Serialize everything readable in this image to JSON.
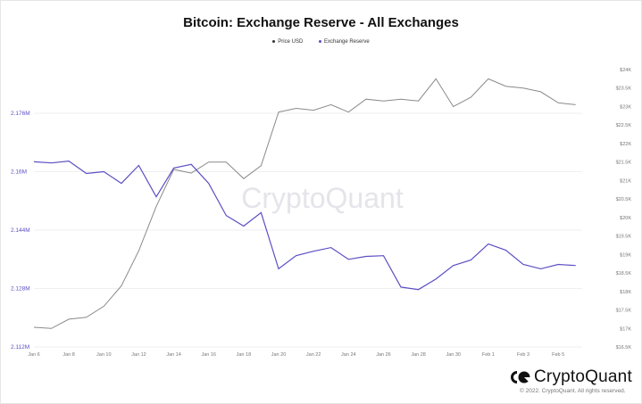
{
  "title": "Bitcoin: Exchange Reserve - All Exchanges",
  "legend": [
    {
      "label": "Price USD",
      "color": "#333333"
    },
    {
      "label": "Exchange Reserve",
      "color": "#5b4fc4"
    }
  ],
  "watermark": "CryptoQuant",
  "footer": {
    "logo_text": "CryptoQuant",
    "copyright": "© 2022. CryptoQuant. All rights reserved."
  },
  "colors": {
    "price": "#8a8a8a",
    "reserve": "#5b4fc4",
    "grid": "#efefef"
  },
  "chart_data": {
    "type": "line",
    "title": "Bitcoin: Exchange Reserve - All Exchanges",
    "xlabel": "",
    "ylabel_left": "Exchange Reserve",
    "ylabel_right": "Price USD",
    "x": [
      "Jan 6",
      "Jan 7",
      "Jan 8",
      "Jan 9",
      "Jan 10",
      "Jan 11",
      "Jan 12",
      "Jan 13",
      "Jan 14",
      "Jan 15",
      "Jan 16",
      "Jan 17",
      "Jan 18",
      "Jan 19",
      "Jan 20",
      "Jan 21",
      "Jan 22",
      "Jan 23",
      "Jan 24",
      "Jan 25",
      "Jan 26",
      "Jan 27",
      "Jan 28",
      "Jan 29",
      "Jan 30",
      "Jan 31",
      "Feb 1",
      "Feb 2",
      "Feb 3",
      "Feb 4",
      "Feb 5",
      "Feb 6"
    ],
    "x_tick_labels": [
      "Jan 6",
      "Jan 8",
      "Jan 10",
      "Jan 12",
      "Jan 14",
      "Jan 16",
      "Jan 18",
      "Jan 20",
      "Jan 22",
      "Jan 24",
      "Jan 26",
      "Jan 28",
      "Jan 30",
      "Feb 1",
      "Feb 3",
      "Feb 5"
    ],
    "left_axis": {
      "ticks": [
        "2.112M",
        "2.128M",
        "2.144M",
        "2.16M",
        "2.176M"
      ],
      "ylim": [
        2.112,
        2.178
      ]
    },
    "right_axis": {
      "ticks": [
        "$16.5K",
        "$17K",
        "$17.5K",
        "$18K",
        "$18.5K",
        "$19K",
        "$19.5K",
        "$20K",
        "$20.5K",
        "$21K",
        "$21.5K",
        "$22K",
        "$22.5K",
        "$23K",
        "$23.5K",
        "$24K"
      ],
      "ylim": [
        16.5,
        24.0
      ]
    },
    "grid": true,
    "legend_position": "top",
    "series": [
      {
        "name": "Exchange Reserve",
        "axis": "left",
        "unit": "M BTC",
        "values": [
          2.1627,
          2.1624,
          2.1629,
          2.1595,
          2.16,
          2.1568,
          2.1617,
          2.1531,
          2.161,
          2.162,
          2.1568,
          2.148,
          2.1451,
          2.1488,
          2.1334,
          2.137,
          2.1382,
          2.1392,
          2.136,
          2.1368,
          2.137,
          2.1284,
          2.1277,
          2.1306,
          2.1343,
          2.1358,
          2.1402,
          2.1385,
          2.1346,
          2.1334,
          2.1346,
          2.1343
        ]
      },
      {
        "name": "Price USD",
        "axis": "right",
        "unit": "K USD",
        "values": [
          17.03,
          17.0,
          17.25,
          17.3,
          17.6,
          18.15,
          19.1,
          20.3,
          21.3,
          21.2,
          21.5,
          21.5,
          21.05,
          21.4,
          22.85,
          22.95,
          22.9,
          23.05,
          22.85,
          23.2,
          23.15,
          23.2,
          23.15,
          23.75,
          23.0,
          23.25,
          23.75,
          23.55,
          23.5,
          23.4,
          23.1,
          23.05
        ]
      }
    ]
  }
}
